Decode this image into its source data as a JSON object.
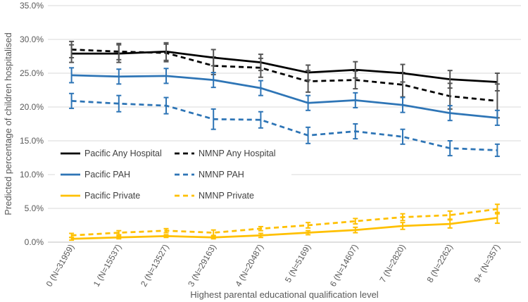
{
  "chart_data": {
    "type": "line",
    "xlabel": "Highest parental educational qualification level",
    "ylabel": "Predicted percentage of children hospitalised",
    "ylim": [
      0,
      35
    ],
    "ytick_step": 5,
    "grid": true,
    "legend_position": "center-left",
    "categories": [
      "0 (N=31959)",
      "1 (N=15537)",
      "2 (N=13527)",
      "3 (N=29163)",
      "4 (N=20487)",
      "5 (N=5169)",
      "6 (N=14607)",
      "7 (N=2820)",
      "8 (N=2262)",
      "9+ (N=357)"
    ],
    "ytick_labels": [
      "0.0%",
      "5.0%",
      "10.0%",
      "15.0%",
      "20.0%",
      "25.0%",
      "30.0%",
      "35.0%"
    ],
    "series": [
      {
        "name": "NMNP Any Hospital",
        "color": "#000000",
        "dash": true,
        "values": [
          28.5,
          28.2,
          28.0,
          26.1,
          25.8,
          23.8,
          24.0,
          23.3,
          21.6,
          20.9
        ],
        "errors": [
          1.2,
          1.2,
          1.3,
          1.3,
          1.4,
          1.6,
          1.3,
          1.8,
          1.9,
          2.5
        ]
      },
      {
        "name": "Pacific Any Hospital",
        "color": "#000000",
        "dash": false,
        "values": [
          27.9,
          27.9,
          28.2,
          27.3,
          26.6,
          25.1,
          25.5,
          25.0,
          24.1,
          23.7
        ],
        "errors": [
          1.3,
          1.3,
          1.3,
          1.2,
          1.2,
          1.1,
          1.2,
          1.3,
          1.3,
          1.3
        ]
      },
      {
        "name": "Pacific PAH",
        "color": "#2E75B6",
        "dash": false,
        "values": [
          24.7,
          24.5,
          24.6,
          24.0,
          22.8,
          20.6,
          21.0,
          20.3,
          19.1,
          18.4
        ],
        "errors": [
          1.1,
          1.1,
          1.1,
          1.1,
          1.1,
          1.1,
          1.1,
          1.1,
          1.1,
          1.1
        ]
      },
      {
        "name": "NMNP PAH",
        "color": "#2E75B6",
        "dash": true,
        "values": [
          20.9,
          20.5,
          20.2,
          18.2,
          18.1,
          15.8,
          16.4,
          15.6,
          13.9,
          13.6
        ],
        "errors": [
          1.1,
          1.2,
          1.2,
          1.5,
          1.2,
          1.2,
          1.1,
          1.1,
          1.1,
          0.9
        ]
      },
      {
        "name": "NMNP Private",
        "color": "#FFC000",
        "dash": true,
        "values": [
          1.0,
          1.4,
          1.7,
          1.4,
          2.0,
          2.5,
          3.1,
          3.7,
          4.0,
          4.9
        ],
        "errors": [
          0.3,
          0.3,
          0.3,
          0.4,
          0.3,
          0.4,
          0.4,
          0.5,
          0.6,
          0.7
        ]
      },
      {
        "name": "Pacific Private",
        "color": "#FFC000",
        "dash": false,
        "values": [
          0.5,
          0.7,
          0.9,
          0.7,
          1.0,
          1.4,
          1.8,
          2.4,
          2.7,
          3.6
        ],
        "errors": [
          0.2,
          0.2,
          0.2,
          0.2,
          0.3,
          0.3,
          0.4,
          0.5,
          0.6,
          0.8
        ]
      }
    ],
    "legend": [
      {
        "label": "Pacific Any Hospital",
        "color": "#000000",
        "dash": false
      },
      {
        "label": "NMNP Any Hospital",
        "color": "#000000",
        "dash": true
      },
      {
        "label": "Pacific PAH",
        "color": "#2E75B6",
        "dash": false
      },
      {
        "label": "NMNP PAH",
        "color": "#2E75B6",
        "dash": true
      },
      {
        "label": "Pacific Private",
        "color": "#FFC000",
        "dash": false
      },
      {
        "label": "NMNP Private",
        "color": "#FFC000",
        "dash": true
      }
    ],
    "errorbar_color": "#555555"
  }
}
